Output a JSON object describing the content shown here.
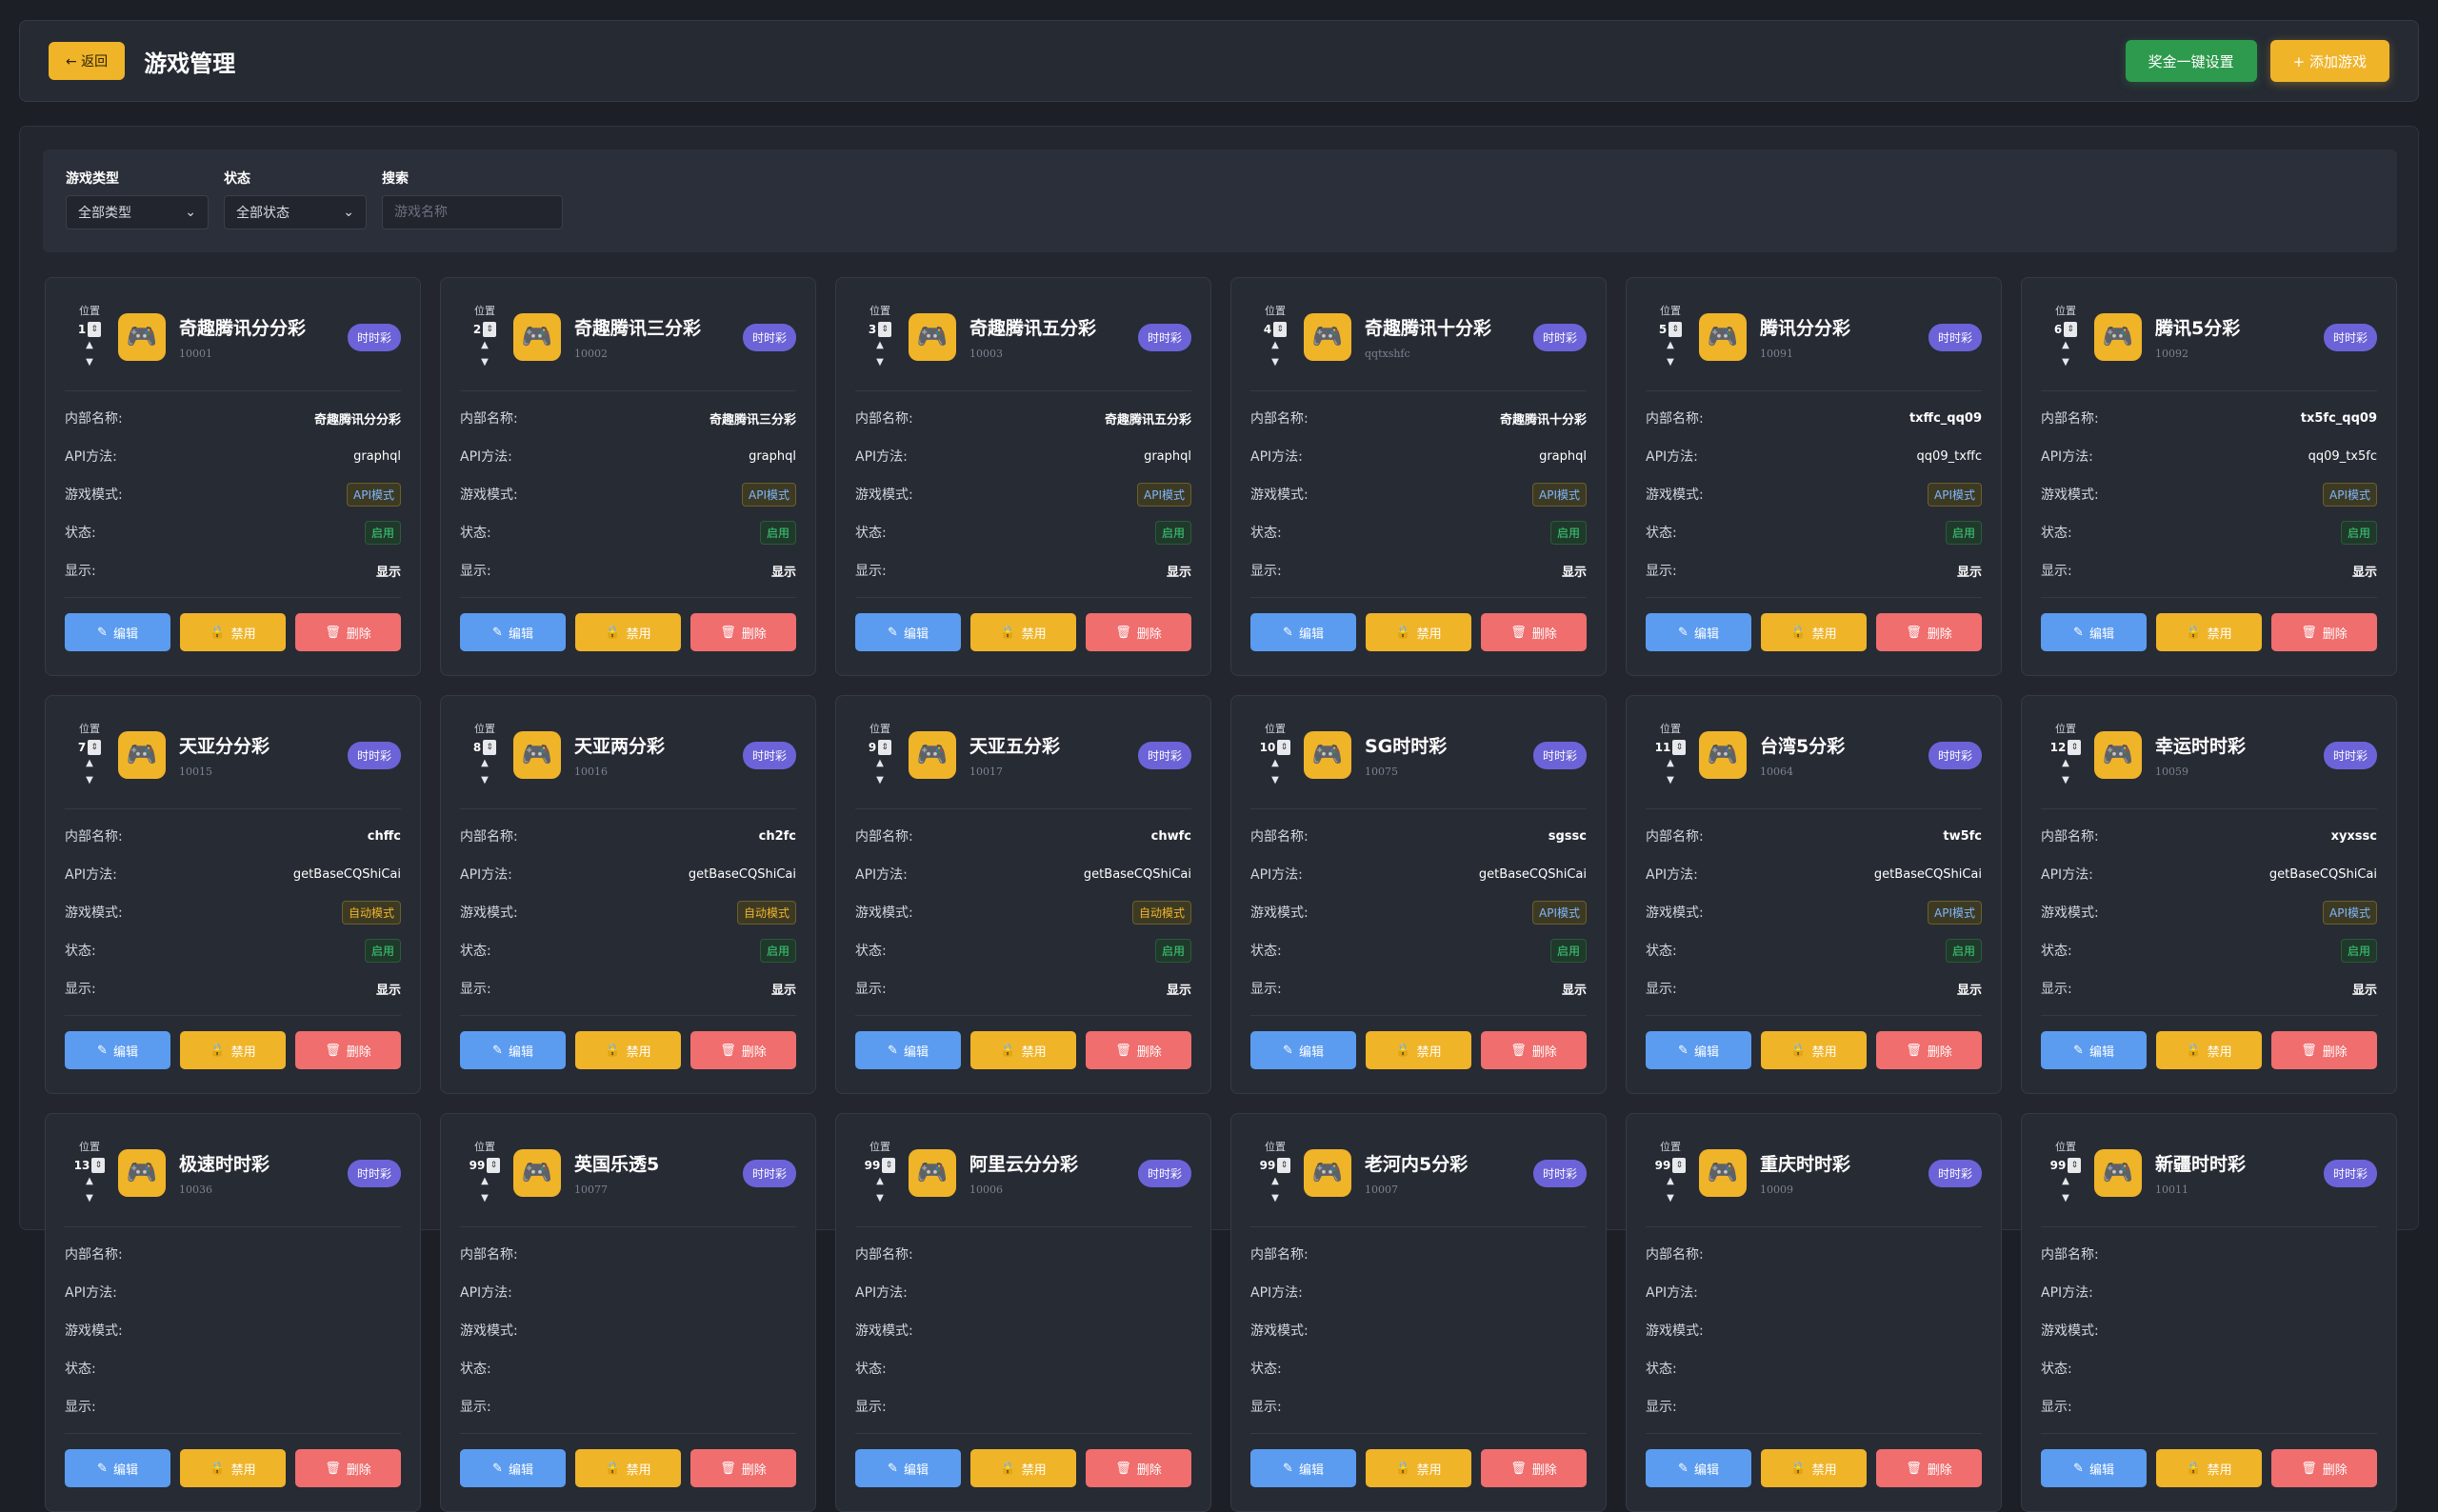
{
  "header": {
    "back_label": "← 返回",
    "title": "游戏管理",
    "bonus_button": "奖金一键设置",
    "add_button": "+ 添加游戏"
  },
  "filters": {
    "type_label": "游戏类型",
    "type_value": "全部类型",
    "status_label": "状态",
    "status_value": "全部状态",
    "search_label": "搜索",
    "search_placeholder": "游戏名称"
  },
  "card_labels": {
    "position": "位置",
    "internal_name": "内部名称:",
    "api_method": "API方法:",
    "game_mode": "游戏模式:",
    "status": "状态:",
    "display": "显示:",
    "edit": "编辑",
    "disable": "禁用",
    "delete": "删除"
  },
  "games": [
    {
      "pos": "1",
      "name": "奇趣腾讯分分彩",
      "code": "10001",
      "type": "时时彩",
      "internal": "奇趣腾讯分分彩",
      "api": "graphql",
      "mode": "API模式",
      "status": "启用",
      "display": "显示"
    },
    {
      "pos": "2",
      "name": "奇趣腾讯三分彩",
      "code": "10002",
      "type": "时时彩",
      "internal": "奇趣腾讯三分彩",
      "api": "graphql",
      "mode": "API模式",
      "status": "启用",
      "display": "显示"
    },
    {
      "pos": "3",
      "name": "奇趣腾讯五分彩",
      "code": "10003",
      "type": "时时彩",
      "internal": "奇趣腾讯五分彩",
      "api": "graphql",
      "mode": "API模式",
      "status": "启用",
      "display": "显示"
    },
    {
      "pos": "4",
      "name": "奇趣腾讯十分彩",
      "code": "qqtxshfc",
      "type": "时时彩",
      "internal": "奇趣腾讯十分彩",
      "api": "graphql",
      "mode": "API模式",
      "status": "启用",
      "display": "显示"
    },
    {
      "pos": "5",
      "name": "腾讯分分彩",
      "code": "10091",
      "type": "时时彩",
      "internal": "txffc_qq09",
      "api": "qq09_txffc",
      "mode": "API模式",
      "status": "启用",
      "display": "显示"
    },
    {
      "pos": "6",
      "name": "腾讯5分彩",
      "code": "10092",
      "type": "时时彩",
      "internal": "tx5fc_qq09",
      "api": "qq09_tx5fc",
      "mode": "API模式",
      "status": "启用",
      "display": "显示"
    },
    {
      "pos": "7",
      "name": "天亚分分彩",
      "code": "10015",
      "type": "时时彩",
      "internal": "chffc",
      "api": "getBaseCQShiCai",
      "mode": "自动模式",
      "status": "启用",
      "display": "显示"
    },
    {
      "pos": "8",
      "name": "天亚两分彩",
      "code": "10016",
      "type": "时时彩",
      "internal": "ch2fc",
      "api": "getBaseCQShiCai",
      "mode": "自动模式",
      "status": "启用",
      "display": "显示"
    },
    {
      "pos": "9",
      "name": "天亚五分彩",
      "code": "10017",
      "type": "时时彩",
      "internal": "chwfc",
      "api": "getBaseCQShiCai",
      "mode": "自动模式",
      "status": "启用",
      "display": "显示"
    },
    {
      "pos": "10",
      "name": "SG时时彩",
      "code": "10075",
      "type": "时时彩",
      "internal": "sgssc",
      "api": "getBaseCQShiCai",
      "mode": "API模式",
      "status": "启用",
      "display": "显示"
    },
    {
      "pos": "11",
      "name": "台湾5分彩",
      "code": "10064",
      "type": "时时彩",
      "internal": "tw5fc",
      "api": "getBaseCQShiCai",
      "mode": "API模式",
      "status": "启用",
      "display": "显示"
    },
    {
      "pos": "12",
      "name": "幸运时时彩",
      "code": "10059",
      "type": "时时彩",
      "internal": "xyxssc",
      "api": "getBaseCQShiCai",
      "mode": "API模式",
      "status": "启用",
      "display": "显示"
    },
    {
      "pos": "13",
      "name": "极速时时彩",
      "code": "10036",
      "type": "时时彩",
      "internal": "",
      "api": "",
      "mode": "",
      "status": "",
      "display": ""
    },
    {
      "pos": "99",
      "name": "英国乐透5",
      "code": "10077",
      "type": "时时彩",
      "internal": "",
      "api": "",
      "mode": "",
      "status": "",
      "display": ""
    },
    {
      "pos": "99",
      "name": "阿里云分分彩",
      "code": "10006",
      "type": "时时彩",
      "internal": "",
      "api": "",
      "mode": "",
      "status": "",
      "display": ""
    },
    {
      "pos": "99",
      "name": "老河内5分彩",
      "code": "10007",
      "type": "时时彩",
      "internal": "",
      "api": "",
      "mode": "",
      "status": "",
      "display": ""
    },
    {
      "pos": "99",
      "name": "重庆时时彩",
      "code": "10009",
      "type": "时时彩",
      "internal": "",
      "api": "",
      "mode": "",
      "status": "",
      "display": ""
    },
    {
      "pos": "99",
      "name": "新疆时时彩",
      "code": "10011",
      "type": "时时彩",
      "internal": "",
      "api": "",
      "mode": "",
      "status": "",
      "display": ""
    }
  ],
  "icons": {
    "game": "gamepad-icon",
    "edit": "pencil-icon",
    "disable": "lock-icon",
    "delete": "trash-icon"
  },
  "colors": {
    "accent": "#f0b429",
    "green": "#2e9a4d",
    "badge": "#6c63d8",
    "edit": "#5b9cf0",
    "delete": "#f06e6e"
  }
}
